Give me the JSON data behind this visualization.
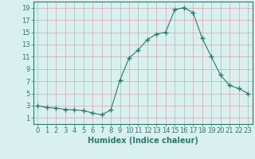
{
  "x": [
    0,
    1,
    2,
    3,
    4,
    5,
    6,
    7,
    8,
    9,
    10,
    11,
    12,
    13,
    14,
    15,
    16,
    17,
    18,
    19,
    20,
    21,
    22,
    23
  ],
  "y": [
    3.0,
    2.7,
    2.6,
    2.4,
    2.3,
    2.2,
    1.8,
    1.5,
    2.3,
    7.2,
    10.8,
    12.1,
    13.8,
    14.7,
    15.0,
    18.7,
    19.0,
    18.2,
    14.0,
    11.0,
    8.0,
    6.3,
    5.8,
    5.0
  ],
  "line_color": "#2a7a6f",
  "marker": "+",
  "marker_size": 4,
  "bg_color": "#d8f0ee",
  "grid_color": "#c0d8d4",
  "xlabel": "Humidex (Indice chaleur)",
  "xlabel_fontsize": 7,
  "tick_fontsize": 6,
  "xlim": [
    -0.5,
    23.5
  ],
  "ylim": [
    0,
    20
  ],
  "yticks": [
    1,
    3,
    5,
    7,
    9,
    11,
    13,
    15,
    17,
    19
  ],
  "xticks": [
    0,
    1,
    2,
    3,
    4,
    5,
    6,
    7,
    8,
    9,
    10,
    11,
    12,
    13,
    14,
    15,
    16,
    17,
    18,
    19,
    20,
    21,
    22,
    23
  ]
}
